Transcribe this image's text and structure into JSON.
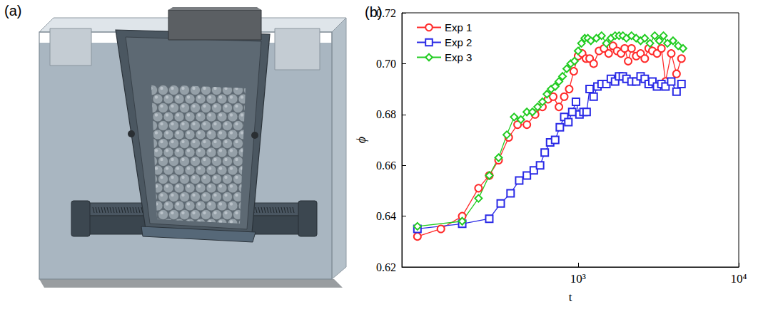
{
  "diagram": {
    "label": "(a)"
  },
  "chart_data": {
    "type": "line",
    "title": "(b)",
    "x_label": "t",
    "y_label": "ϕ",
    "log": "x",
    "xlim": [
      80,
      10000
    ],
    "xticks": [
      {
        "value": 1000,
        "label": "10³"
      },
      {
        "value": 10000,
        "label": "10⁴"
      }
    ],
    "ylim": [
      0.62,
      0.72
    ],
    "yticks": [
      0.62,
      0.64,
      0.66,
      0.68,
      {
        "value": 0.7,
        "label": "0.70"
      },
      0.72
    ],
    "grid": false,
    "legend": "upper left",
    "series": [
      {
        "name": "Exp 1",
        "color": "#ff2a2a",
        "marker": "circle",
        "x": [
          100,
          140,
          190,
          240,
          280,
          320,
          370,
          420,
          480,
          540,
          600,
          650,
          700,
          760,
          820,
          880,
          940,
          1000,
          1060,
          1120,
          1180,
          1250,
          1350,
          1450,
          1550,
          1650,
          1750,
          1850,
          1950,
          2050,
          2150,
          2300,
          2450,
          2600,
          2750,
          2900,
          3100,
          3300,
          3500,
          3800,
          4100,
          4400
        ],
        "values": [
          0.632,
          0.635,
          0.64,
          0.651,
          0.656,
          0.662,
          0.671,
          0.676,
          0.676,
          0.68,
          0.683,
          0.686,
          0.687,
          0.683,
          0.687,
          0.69,
          0.697,
          0.703,
          0.704,
          0.702,
          0.702,
          0.7,
          0.705,
          0.706,
          0.704,
          0.707,
          0.705,
          0.704,
          0.706,
          0.701,
          0.706,
          0.703,
          0.704,
          0.702,
          0.706,
          0.705,
          0.704,
          0.706,
          0.693,
          0.704,
          0.696,
          0.702
        ]
      },
      {
        "name": "Exp 2",
        "color": "#2a2ae6",
        "marker": "square",
        "x": [
          100,
          190,
          280,
          330,
          380,
          430,
          480,
          530,
          580,
          620,
          670,
          720,
          770,
          820,
          870,
          920,
          970,
          1020,
          1080,
          1130,
          1180,
          1250,
          1320,
          1400,
          1500,
          1600,
          1700,
          1800,
          1900,
          2000,
          2150,
          2300,
          2450,
          2600,
          2750,
          2900,
          3100,
          3300,
          3500,
          3800,
          4100,
          4400
        ],
        "values": [
          0.635,
          0.637,
          0.639,
          0.645,
          0.649,
          0.654,
          0.656,
          0.658,
          0.66,
          0.665,
          0.669,
          0.67,
          0.675,
          0.679,
          0.677,
          0.681,
          0.685,
          0.68,
          0.681,
          0.681,
          0.69,
          0.687,
          0.691,
          0.692,
          0.692,
          0.694,
          0.693,
          0.695,
          0.695,
          0.694,
          0.693,
          0.693,
          0.695,
          0.694,
          0.692,
          0.693,
          0.691,
          0.692,
          0.691,
          0.693,
          0.689,
          0.692
        ]
      },
      {
        "name": "Exp 3",
        "color": "#22cc22",
        "marker": "diamond",
        "x": [
          100,
          190,
          240,
          280,
          320,
          360,
          400,
          440,
          480,
          520,
          560,
          600,
          640,
          680,
          720,
          760,
          800,
          850,
          900,
          950,
          1000,
          1050,
          1100,
          1150,
          1200,
          1300,
          1400,
          1500,
          1600,
          1700,
          1800,
          1900,
          2000,
          2150,
          2300,
          2450,
          2600,
          2800,
          3000,
          3200,
          3400,
          3600,
          3900,
          4200,
          4500
        ],
        "values": [
          0.636,
          0.638,
          0.647,
          0.656,
          0.663,
          0.672,
          0.679,
          0.678,
          0.681,
          0.681,
          0.683,
          0.685,
          0.688,
          0.69,
          0.691,
          0.693,
          0.695,
          0.698,
          0.7,
          0.701,
          0.705,
          0.708,
          0.71,
          0.71,
          0.709,
          0.71,
          0.711,
          0.708,
          0.71,
          0.711,
          0.711,
          0.711,
          0.71,
          0.711,
          0.71,
          0.709,
          0.71,
          0.708,
          0.711,
          0.709,
          0.711,
          0.708,
          0.709,
          0.707,
          0.706
        ]
      }
    ]
  }
}
